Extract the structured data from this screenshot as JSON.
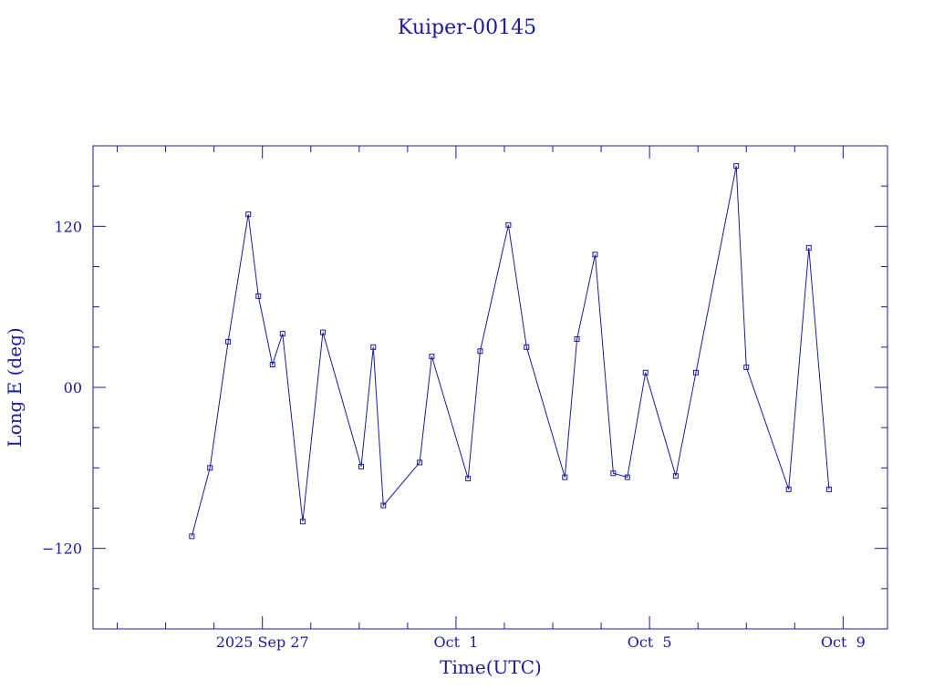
{
  "chart_data": {
    "type": "line",
    "title": "Kuiper-00145",
    "xlabel": "Time(UTC)",
    "ylabel": "Long E (deg)",
    "color": "#1a1a9c",
    "grid": false,
    "x_tick_labels": [
      "2025 Sep 27",
      "Oct  1",
      "Oct  5",
      "Oct  9"
    ],
    "y_tick_labels": [
      "120",
      "00",
      "−120"
    ],
    "x_ticks": [
      "2025-09-27",
      "2025-10-01",
      "2025-10-05",
      "2025-10-09"
    ],
    "y_ticks": [
      120,
      0,
      -120
    ],
    "xlim": [
      "2025-09-23T12:00",
      "2025-10-09T22:00"
    ],
    "ylim": [
      -180,
      180
    ],
    "series": [
      {
        "x": [
          "2025-09-25T13:00",
          "2025-09-25T22:00",
          "2025-09-26T07:00",
          "2025-09-26T17:00",
          "2025-09-26T22:00",
          "2025-09-27T05:00",
          "2025-09-27T10:00",
          "2025-09-27T20:00",
          "2025-09-28T06:00",
          "2025-09-29T01:00",
          "2025-09-29T07:00",
          "2025-09-29T12:00",
          "2025-09-30T06:00",
          "2025-09-30T12:00",
          "2025-10-01T06:00",
          "2025-10-01T12:00",
          "2025-10-02T02:00",
          "2025-10-02T11:00",
          "2025-10-03T06:00",
          "2025-10-03T12:00",
          "2025-10-03T21:00",
          "2025-10-04T06:00",
          "2025-10-04T13:00",
          "2025-10-04T22:00",
          "2025-10-05T13:00",
          "2025-10-05T23:00",
          "2025-10-06T19:00",
          "2025-10-07T00:00",
          "2025-10-07T21:00",
          "2025-10-08T07:00",
          "2025-10-08T17:00"
        ],
        "y": [
          -111,
          -60,
          34,
          129,
          68,
          17,
          40,
          -100,
          41,
          -59,
          30,
          -88,
          -56,
          23,
          -68,
          27,
          121,
          30,
          -67,
          36,
          99,
          -64,
          -67,
          11,
          -66,
          11,
          165,
          15,
          -76,
          104,
          -76
        ]
      }
    ]
  }
}
